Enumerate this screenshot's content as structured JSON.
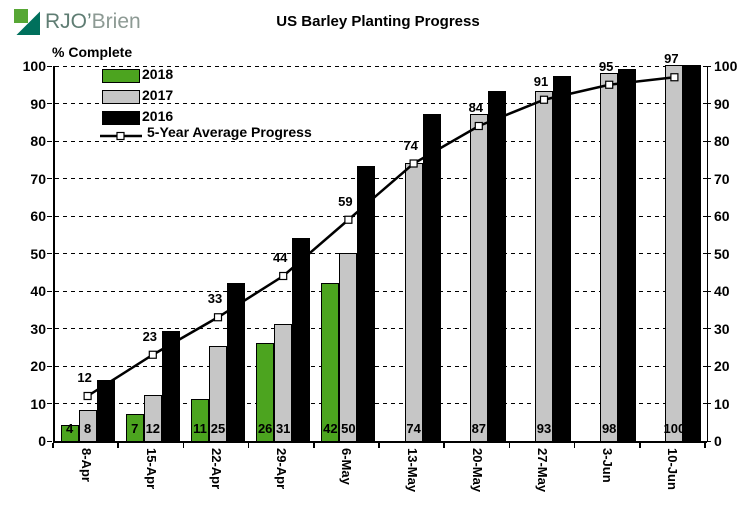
{
  "logo": {
    "text_primary": "RJO",
    "text_apostrophe": "’",
    "text_secondary": "Brien"
  },
  "title": "US Barley Planting Progress",
  "y_axis_title": "% Complete",
  "colors": {
    "bar_2018": "#4ca41f",
    "bar_2017": "#c6c6c6",
    "bar_2016": "#000000",
    "line": "#000000",
    "logo_green": "#57a735",
    "logo_teal": "#00705c",
    "logo_text_primary": "#5f7d73",
    "logo_text_secondary": "#8d9a94"
  },
  "chart_data": {
    "type": "bar",
    "subtype": "grouped bars with overlaid line (combo)",
    "title": "US Barley Planting Progress",
    "xlabel": "",
    "ylabel": "% Complete",
    "categories": [
      "8-Apr",
      "15-Apr",
      "22-Apr",
      "29-Apr",
      "6-May",
      "13-May",
      "20-May",
      "27-May",
      "3-Jun",
      "10-Jun"
    ],
    "series": [
      {
        "name": "2018",
        "type": "bar",
        "color": "#4ca41f",
        "labels_visible": true,
        "values": [
          4,
          7,
          11,
          26,
          42,
          null,
          null,
          null,
          null,
          null
        ]
      },
      {
        "name": "2017",
        "type": "bar",
        "color": "#c6c6c6",
        "labels_visible": true,
        "values": [
          8,
          12,
          25,
          31,
          50,
          74,
          87,
          93,
          98,
          100
        ]
      },
      {
        "name": "2016",
        "type": "bar",
        "color": "#000000",
        "labels_visible": false,
        "values": [
          16,
          29,
          42,
          54,
          73,
          87,
          93,
          97,
          99,
          100
        ]
      },
      {
        "name": "5-Year Average Progress",
        "type": "line",
        "color": "#000000",
        "labels_visible": true,
        "marker": "open-square",
        "values": [
          12,
          23,
          33,
          44,
          59,
          74,
          84,
          91,
          95,
          97
        ]
      }
    ],
    "ylim": [
      0,
      100
    ],
    "ytick_step": 10,
    "yticks": [
      "0",
      "10",
      "20",
      "30",
      "40",
      "50",
      "60",
      "70",
      "80",
      "90",
      "100"
    ],
    "dual_y_axis": true,
    "grid": "horizontal dashed",
    "legend_position": "top-left inside plot"
  }
}
